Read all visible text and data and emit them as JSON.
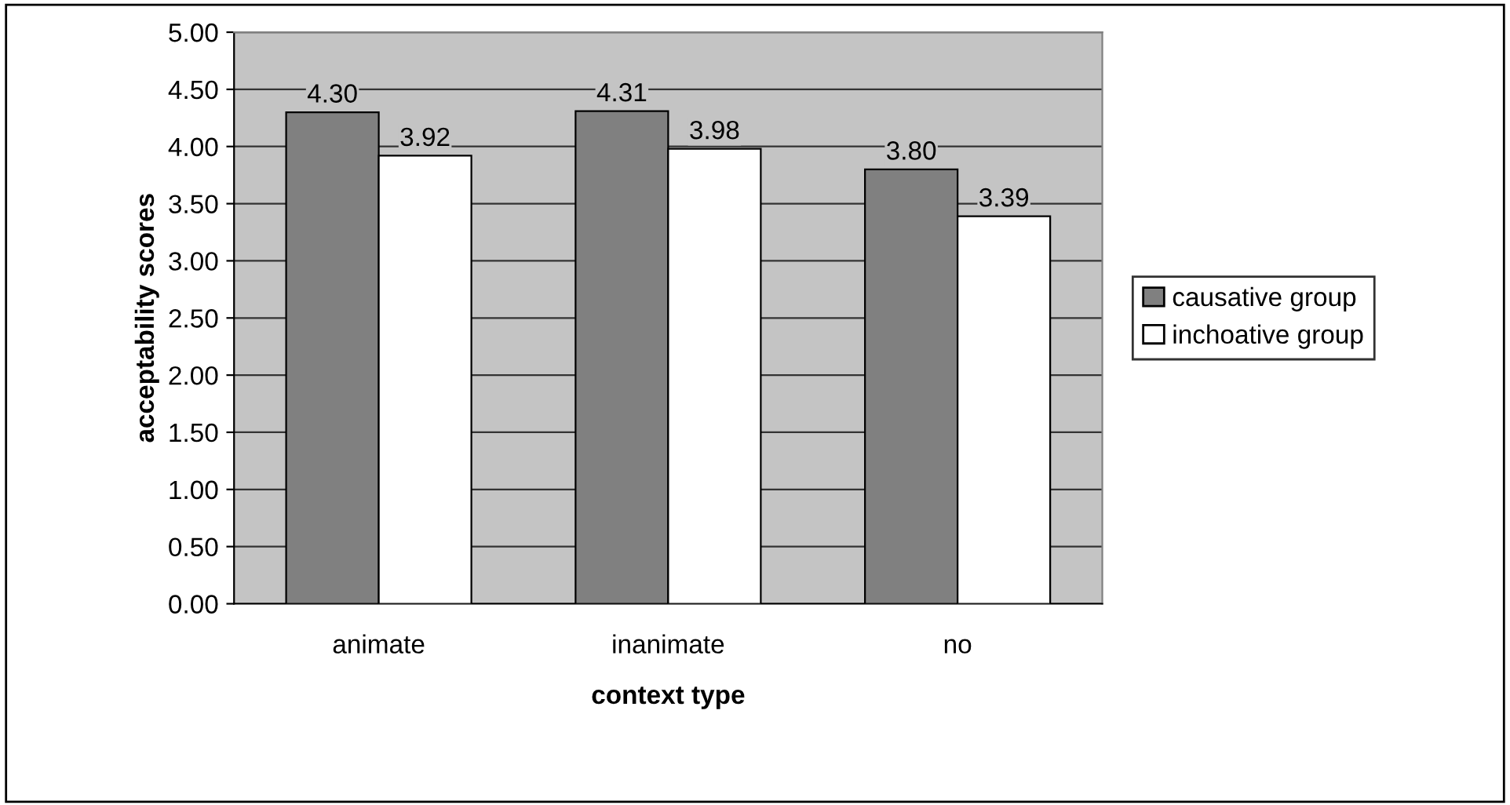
{
  "chart_data": {
    "type": "bar",
    "xlabel": "context type",
    "ylabel": "acceptability scores",
    "categories": [
      "animate",
      "inanimate",
      "no"
    ],
    "series": [
      {
        "name": "causative group",
        "color": "#808080",
        "values": [
          4.3,
          4.31,
          3.8
        ],
        "value_labels": [
          "4.30",
          "4.31",
          "3.80"
        ]
      },
      {
        "name": "inchoative group",
        "color": "#ffffff",
        "values": [
          3.92,
          3.98,
          3.39
        ],
        "value_labels": [
          "3.92",
          "3.98",
          "3.39"
        ]
      }
    ],
    "ylim": [
      0,
      5
    ],
    "yticks": [
      {
        "value": 0,
        "label": "0.00"
      },
      {
        "value": 0.5,
        "label": "0.50"
      },
      {
        "value": 1,
        "label": "1.00"
      },
      {
        "value": 1.5,
        "label": "1.50"
      },
      {
        "value": 2,
        "label": "2.00"
      },
      {
        "value": 2.5,
        "label": "2.50"
      },
      {
        "value": 3,
        "label": "3.00"
      },
      {
        "value": 3.5,
        "label": "3.50"
      },
      {
        "value": 4,
        "label": "4.00"
      },
      {
        "value": 4.5,
        "label": "4.50"
      },
      {
        "value": 5,
        "label": "5.00"
      }
    ],
    "grid": "y",
    "legend": "right"
  }
}
